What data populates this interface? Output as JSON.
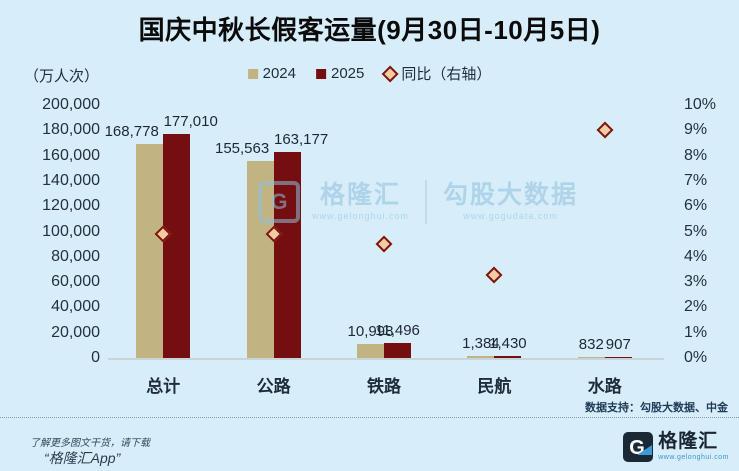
{
  "title": "国庆中秋长假客运量(9月30日-10月5日)",
  "unit_label": "（万人次）",
  "legend": [
    {
      "label": "2024",
      "swatch": "square",
      "color": "#c2b383"
    },
    {
      "label": "2025",
      "swatch": "square",
      "color": "#740e10"
    },
    {
      "label": "同比（右轴）",
      "swatch": "diamond",
      "stroke": "#7d150f",
      "fill": "#f2cba2"
    }
  ],
  "chart_data": {
    "type": "bar",
    "title": "国庆中秋长假客运量(9月30日-10月5日)",
    "categories": [
      "总计",
      "公路",
      "铁路",
      "民航",
      "水路"
    ],
    "series": [
      {
        "name": "2024",
        "axis": "left",
        "color": "#c2b383",
        "values": [
          168778,
          155563,
          10998,
          1384,
          832
        ],
        "labels": [
          "168,778",
          "155,563",
          "10,998",
          "1,384",
          "832"
        ]
      },
      {
        "name": "2025",
        "axis": "left",
        "color": "#740e10",
        "values": [
          177010,
          163177,
          11496,
          1430,
          907
        ],
        "labels": [
          "177,010",
          "163,177",
          "11,496",
          "1,430",
          "907"
        ]
      }
    ],
    "yoy_series": {
      "name": "同比（右轴）",
      "axis": "right",
      "marker": "diamond",
      "values_pct": [
        4.9,
        4.9,
        4.5,
        3.3,
        9.0
      ],
      "stroke": "#7d150f",
      "fill": "#f2cba2"
    },
    "left_axis": {
      "label": "（万人次）",
      "min": 0,
      "max": 200000,
      "ticks": [
        "200,000",
        "180,000",
        "160,000",
        "140,000",
        "120,000",
        "100,000",
        "80,000",
        "60,000",
        "40,000",
        "20,000",
        "0"
      ]
    },
    "right_axis": {
      "min": 0,
      "max": 10,
      "ticks": [
        "10%",
        "9%",
        "8%",
        "7%",
        "6%",
        "5%",
        "4%",
        "3%",
        "2%",
        "1%",
        "0%"
      ]
    },
    "grid": false,
    "legend_position": "top"
  },
  "watermark": {
    "brand1": "格隆汇",
    "brand1_url": "www.gelonghui.com",
    "brand2": "勾股大数据",
    "brand2_url": "www.gogudata.com"
  },
  "footer": {
    "source": "数据支持：勾股大数据、中金",
    "promo_line1": "了解更多图文干货，请下载",
    "promo_line2": "“格隆汇App”",
    "logo_text": "格隆汇",
    "logo_url": "www.gelonghui.com"
  }
}
